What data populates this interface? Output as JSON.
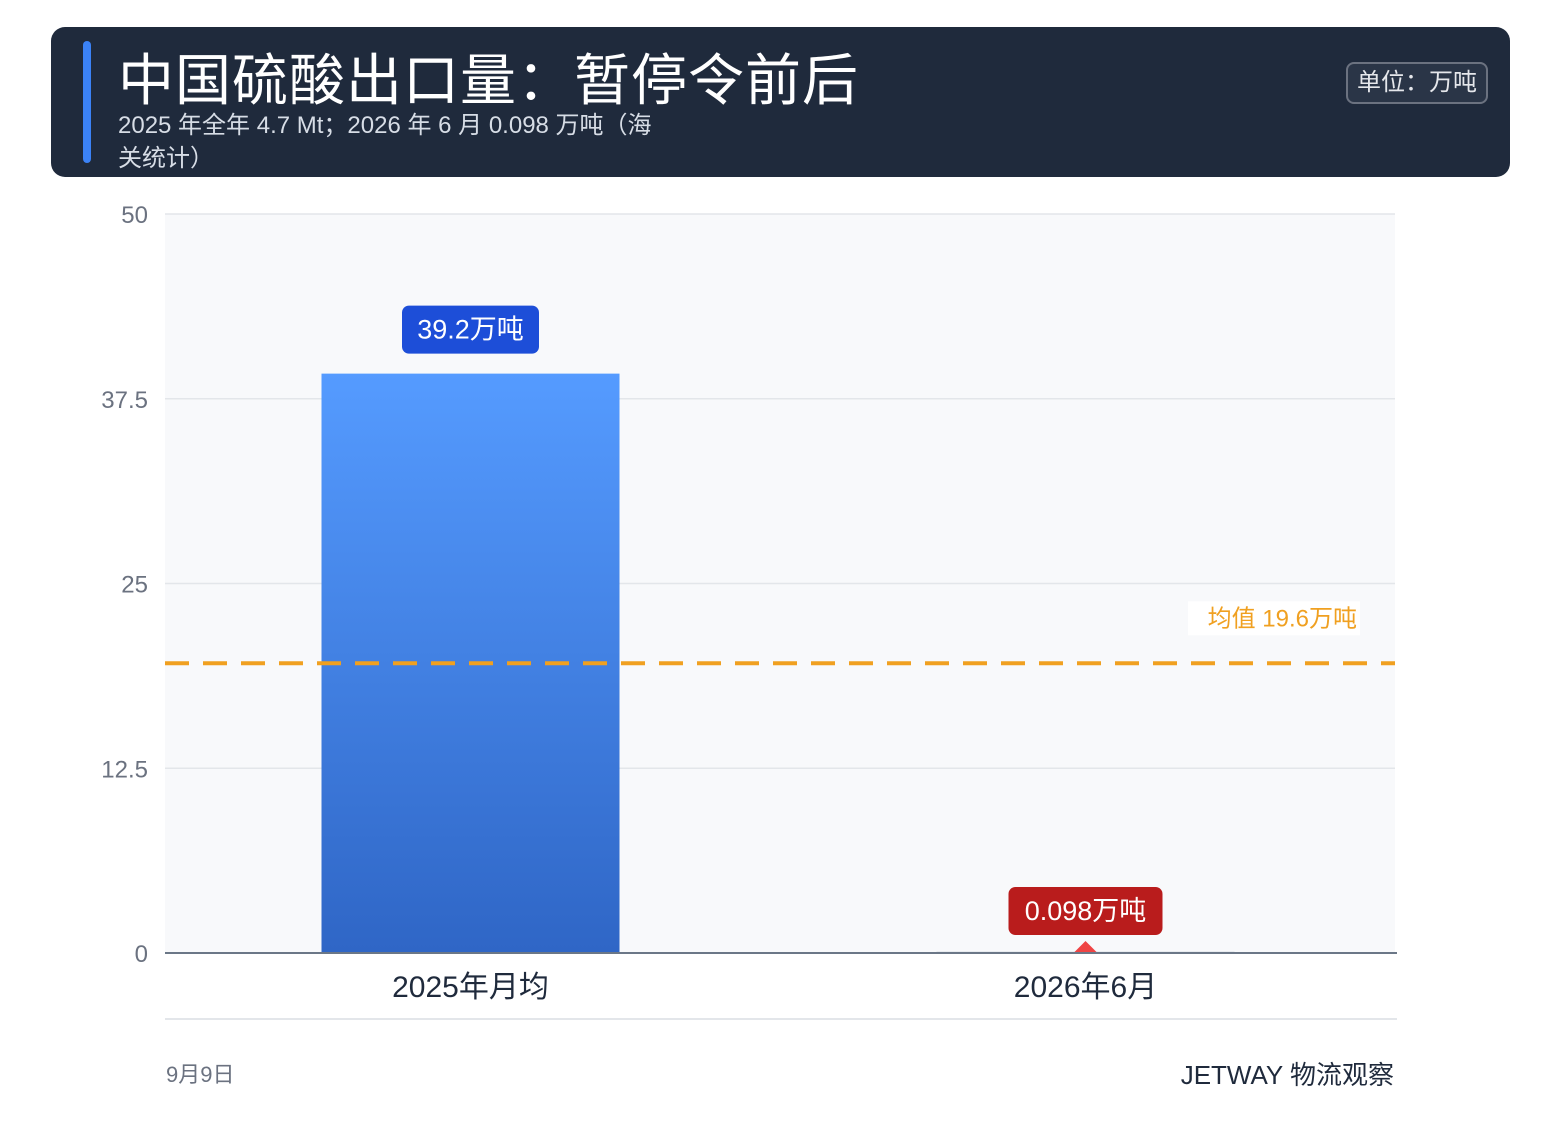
{
  "header": {
    "title": "中国硫酸出口量：暂停令前后",
    "subtitle": "2025 年全年 4.7 Mt；2026 年 6 月 0.098 万吨（海关统计）",
    "unit_badge": "单位：万吨"
  },
  "chart_data": {
    "type": "bar",
    "categories": [
      "2025年月均",
      "2026年6月"
    ],
    "values": [
      39.2,
      0.098
    ],
    "value_labels": [
      "39.2万吨",
      "0.098万吨"
    ],
    "ylim": [
      0,
      50
    ],
    "yticks": [
      "0",
      "12.5",
      "25",
      "37.5",
      "50"
    ],
    "ytick_values": [
      0,
      12.5,
      25,
      37.5,
      50
    ],
    "reference_line": {
      "value": 19.6,
      "label": "均值 19.6万吨",
      "color": "#f0a020"
    },
    "colors": {
      "bar_primary_top": "#559bff",
      "bar_primary_bottom": "#2f66c6",
      "label_primary": "#1d4ed8",
      "label_alert": "#b91c1c",
      "marker": "#ef4444",
      "plot_bg": "#f8f9fb"
    },
    "grid": true
  },
  "footer": {
    "date": "9月9日",
    "brand": "JETWAY 物流观察"
  }
}
